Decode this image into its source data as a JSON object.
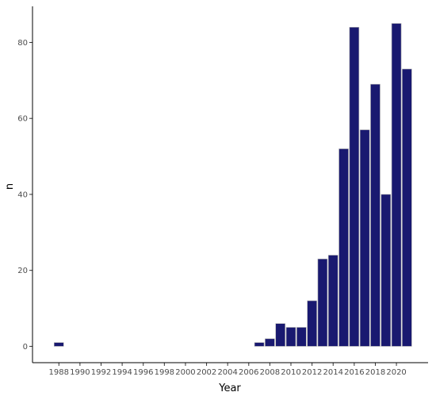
{
  "chart_data": {
    "type": "bar",
    "xlabel": "Year",
    "ylabel": "n",
    "x_tick_labels": [
      "1988",
      "1990",
      "1992",
      "1994",
      "1996",
      "1998",
      "2000",
      "2002",
      "2004",
      "2006",
      "2008",
      "2010",
      "2012",
      "2014",
      "2016",
      "2018",
      "2020"
    ],
    "y_tick_labels": [
      "0",
      "20",
      "40",
      "60",
      "80"
    ],
    "y_ticks": [
      0,
      20,
      40,
      60,
      80
    ],
    "xlim": [
      1985.5,
      2023.0
    ],
    "ylim": [
      -4.3,
      89.5
    ],
    "bar_color": "#191970",
    "bar_edge_color": "#b0b0b0",
    "categories": [
      1988,
      2007,
      2008,
      2009,
      2010,
      2011,
      2012,
      2013,
      2014,
      2015,
      2016,
      2017,
      2018,
      2019,
      2020,
      2021
    ],
    "values": [
      1,
      1,
      2,
      6,
      5,
      5,
      12,
      23,
      24,
      52,
      84,
      57,
      69,
      40,
      85,
      73
    ],
    "grid": false,
    "legend": "none"
  }
}
